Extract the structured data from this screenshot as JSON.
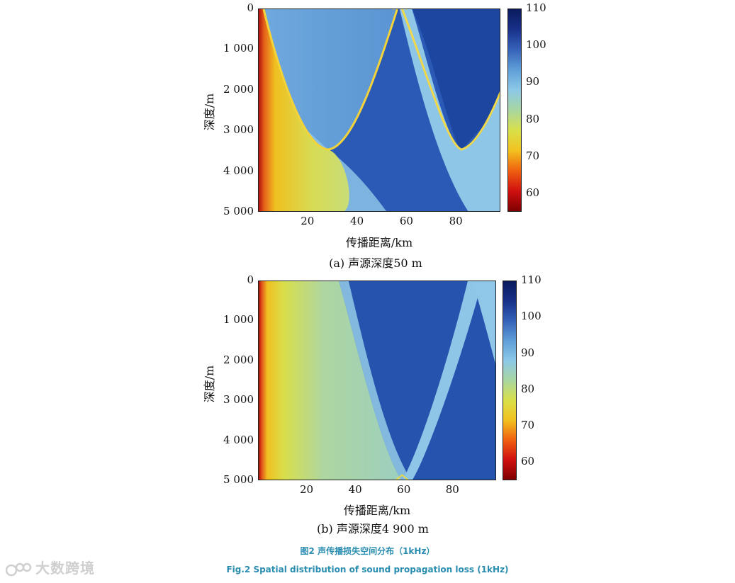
{
  "chart_data": [
    {
      "type": "heatmap",
      "panel_caption": "(a) 声源深度50 m",
      "xlabel": "传播距离/km",
      "ylabel": "深度/m",
      "xlim": [
        0,
        98
      ],
      "ylim": [
        0,
        5000
      ],
      "x_ticks": [
        "20",
        "40",
        "60",
        "80"
      ],
      "y_ticks": [
        "0",
        "1 000",
        "2 000",
        "3 000",
        "4 000",
        "5 000"
      ],
      "colorbar_ticks": [
        "110",
        "100",
        "90",
        "80",
        "70",
        "60"
      ],
      "colorbar_range": [
        55,
        110
      ],
      "source_depth_m": 50
    },
    {
      "type": "heatmap",
      "panel_caption": "(b) 声源深度4 900 m",
      "xlabel": "传播距离/km",
      "ylabel": "深度/m",
      "xlim": [
        0,
        98
      ],
      "ylim": [
        0,
        5000
      ],
      "x_ticks": [
        "20",
        "40",
        "60",
        "80"
      ],
      "y_ticks": [
        "0",
        "1 000",
        "2 000",
        "3 000",
        "4 000",
        "5 000"
      ],
      "colorbar_ticks": [
        "110",
        "100",
        "90",
        "80",
        "70",
        "60"
      ],
      "colorbar_range": [
        55,
        110
      ],
      "source_depth_m": 4900
    }
  ],
  "figure": {
    "caption_cn": "图2 声传播损失空间分布（1kHz）",
    "caption_en": "Fig.2 Spatial distribution of sound propagation loss (1kHz)"
  },
  "watermark": {
    "text": "大数跨境"
  },
  "colors": {
    "colormap": [
      "#7f0000",
      "#d01010",
      "#f06010",
      "#f2c21f",
      "#d9e04a",
      "#a8d6a0",
      "#8cc8e8",
      "#5f9fd8",
      "#3562b8",
      "#18318a",
      "#0a1a5c"
    ],
    "caption": "#2a8db0"
  }
}
